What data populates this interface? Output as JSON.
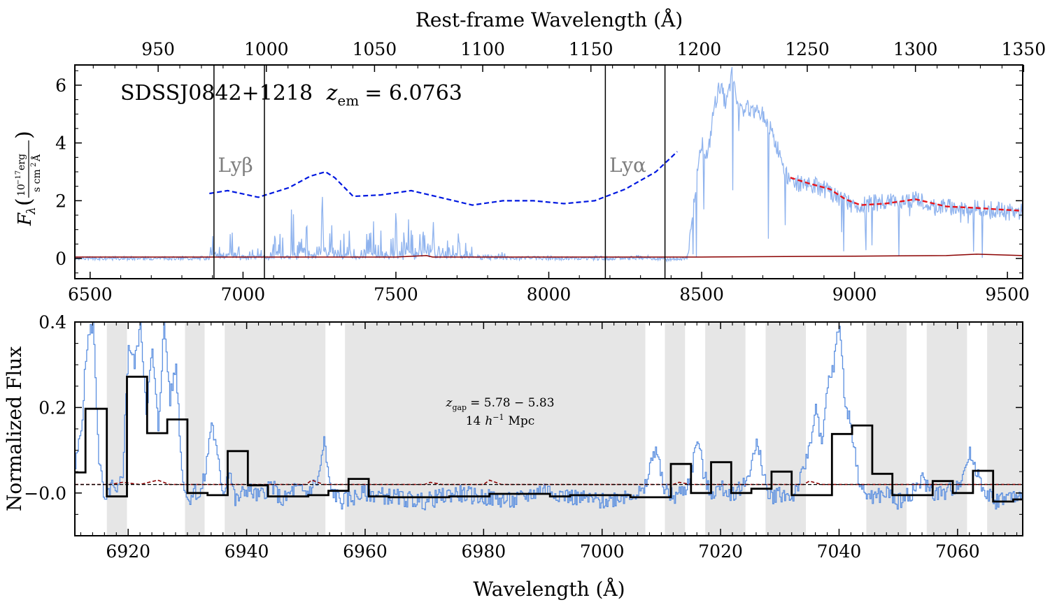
{
  "colors": {
    "spectrum": "#8fb3ee",
    "spectrum_bottom": "#5b8fe0",
    "error": "#8b0000",
    "continuum_extrap": "#0018e0",
    "continuum_fit": "#e8141b",
    "binned": "#000000",
    "gap_shade": "#e6e6e6"
  },
  "chart_data": [
    {
      "type": "line",
      "panel": "top",
      "annotation": "SDSSJ0842+1218 z_em = 6.0763",
      "annotation_object": "SDSSJ0842+1218",
      "annotation_z_label": "z",
      "annotation_z_sub": "em",
      "annotation_z_value": "= 6.0763",
      "xlabel_top": "Rest-frame Wavelength (Å)",
      "ylabel": "F_λ (10^-17 erg / s cm^2 Å)",
      "ylabel_parts": {
        "main": "F",
        "sub": "λ",
        "num": "10",
        "num_exp": "−17",
        "num_unit": "erg",
        "den": "s cm",
        "den_exp": "2",
        "den_unit": "Å"
      },
      "xlim": [
        6450,
        9550
      ],
      "ylim": [
        -0.7,
        6.7
      ],
      "x_ticks": [
        "6500",
        "7000",
        "7500",
        "8000",
        "8500",
        "9000",
        "9500"
      ],
      "x_tick_values": [
        6500,
        7000,
        7500,
        8000,
        8500,
        9000,
        9500
      ],
      "top_ticks": [
        "950",
        "1000",
        "1050",
        "1100",
        "1150",
        "1200",
        "1250",
        "1300",
        "1350"
      ],
      "top_tick_values": [
        950,
        1000,
        1050,
        1100,
        1150,
        1200,
        1250,
        1300,
        1350
      ],
      "redshift": 6.0763,
      "y_ticks": [
        "0",
        "2",
        "4",
        "6"
      ],
      "y_tick_values": [
        0,
        2,
        4,
        6
      ],
      "line_markers": [
        6905,
        7070,
        8185,
        8380
      ],
      "line_labels": [
        {
          "text": "Lyβ",
          "x": 6918,
          "y": 3.0
        },
        {
          "text": "Lyα",
          "x": 8198,
          "y": 3.0
        }
      ],
      "continuum_blue_dashed": {
        "x": [
          6890,
          6950,
          7050,
          7150,
          7220,
          7270,
          7300,
          7360,
          7450,
          7550,
          7650,
          7750,
          7850,
          7950,
          8050,
          8150,
          8250,
          8350,
          8420
        ],
        "y": [
          2.25,
          2.35,
          2.12,
          2.45,
          2.85,
          3.0,
          2.8,
          2.15,
          2.2,
          2.35,
          2.1,
          1.85,
          2.0,
          2.0,
          1.9,
          2.0,
          2.4,
          3.0,
          3.7
        ]
      },
      "continuum_red_dashed": {
        "x": [
          8790,
          8850,
          8920,
          8970,
          9020,
          9100,
          9200,
          9300,
          9400,
          9470,
          9550
        ],
        "y": [
          2.8,
          2.6,
          2.4,
          2.05,
          1.85,
          1.9,
          2.05,
          1.8,
          1.75,
          1.7,
          1.65
        ]
      },
      "spectrum": {
        "x": [
          6450,
          6890,
          6905,
          6930,
          6960,
          7000,
          7050,
          7080,
          7100,
          7120,
          7140,
          7160,
          7180,
          7200,
          7220,
          7240,
          7260,
          7280,
          7300,
          7320,
          7340,
          7360,
          7380,
          7400,
          7420,
          7440,
          7460,
          7480,
          7500,
          7520,
          7540,
          7560,
          7580,
          7600,
          7620,
          7640,
          7660,
          7680,
          7700,
          7720,
          7740,
          7760,
          7800,
          7850,
          7900,
          7950,
          8000,
          8050,
          8100,
          8150,
          8200,
          8250,
          8300,
          8350,
          8400,
          8440,
          8460,
          8480,
          8500,
          8520,
          8540,
          8560,
          8580,
          8600,
          8620,
          8660,
          8700,
          8720,
          8740,
          8760,
          8780,
          8800,
          8850,
          8900,
          8950,
          9000,
          9050,
          9100,
          9150,
          9200,
          9250,
          9300,
          9350,
          9400,
          9450,
          9500,
          9550
        ],
        "y": [
          0.0,
          0.05,
          1.2,
          0.1,
          0.8,
          0.2,
          0.4,
          0.1,
          0.6,
          1.0,
          0.3,
          1.7,
          0.4,
          2.0,
          0.5,
          1.6,
          2.1,
          0.6,
          1.5,
          0.5,
          1.2,
          0.3,
          0.2,
          0.6,
          1.4,
          0.4,
          1.3,
          0.5,
          1.5,
          0.6,
          1.6,
          0.4,
          1.2,
          0.6,
          1.4,
          0.5,
          1.0,
          0.3,
          0.9,
          0.4,
          0.7,
          0.2,
          0.1,
          0.15,
          0.05,
          0.1,
          0.05,
          0.0,
          0.1,
          0.05,
          0.0,
          0.05,
          0.1,
          0.0,
          -0.1,
          0.0,
          0.5,
          2.5,
          4.0,
          3.5,
          5.2,
          6.0,
          5.3,
          6.4,
          5.2,
          5.2,
          5.0,
          4.6,
          4.0,
          3.6,
          2.8,
          2.6,
          2.6,
          2.4,
          2.1,
          1.8,
          1.9,
          2.0,
          1.9,
          2.1,
          1.8,
          1.8,
          1.7,
          1.8,
          1.7,
          1.6,
          1.6
        ]
      },
      "error_spectrum": {
        "x": [
          6450,
          7000,
          7500,
          7600,
          7620,
          8000,
          8500,
          9000,
          9300,
          9400,
          9550
        ],
        "y": [
          0.05,
          0.05,
          0.05,
          0.1,
          0.05,
          0.05,
          0.05,
          0.08,
          0.1,
          0.15,
          0.1
        ]
      }
    },
    {
      "type": "line",
      "panel": "bottom",
      "xlabel": "Wavelength (Å)",
      "ylabel": "Normalized Flux",
      "xlim": [
        6911,
        7071
      ],
      "ylim": [
        -0.1,
        0.4
      ],
      "x_ticks": [
        "6920",
        "6940",
        "6960",
        "6980",
        "7000",
        "7020",
        "7040",
        "7060"
      ],
      "x_tick_values": [
        6920,
        6940,
        6960,
        6980,
        7000,
        7020,
        7040,
        7060
      ],
      "y_ticks": [
        "−0.0",
        "0.2",
        "0.4"
      ],
      "y_tick_values": [
        0.0,
        0.2,
        0.4
      ],
      "annotation_line1": "z_gap = 5.78 − 5.83",
      "annotation_line1_parts": {
        "z": "z",
        "sub": "gap",
        "rest": "= 5.78 − 5.83"
      },
      "annotation_line2": "14 h^-1 Mpc",
      "annotation_line2_parts": {
        "pre": "14",
        "h": "h",
        "exp": "−1",
        "unit": "Mpc"
      },
      "shaded_regions": [
        [
          6916.4,
          6919.8
        ],
        [
          6929.6,
          6932.9
        ],
        [
          6936.3,
          6953.3
        ],
        [
          6956.6,
          7007.3
        ],
        [
          7010.6,
          7014.0
        ],
        [
          7017.4,
          7024.2
        ],
        [
          7027.6,
          7034.4
        ],
        [
          7044.6,
          7051.4
        ],
        [
          7054.8,
          7061.6
        ],
        [
          7065.0,
          7071.0
        ]
      ],
      "binned_steps": {
        "edges": [
          6911,
          6912.8,
          6916.4,
          6919.8,
          6923.2,
          6926.6,
          6930.0,
          6933.4,
          6936.8,
          6940.2,
          6943.6,
          6947.0,
          6950.4,
          6953.8,
          6957.2,
          6960.6,
          6964.0,
          6967.4,
          6970.8,
          6974.2,
          6977.6,
          6981.0,
          6984.4,
          6987.8,
          6991.2,
          6994.6,
          6998.0,
          7001.4,
          7004.8,
          7008.2,
          7011.6,
          7015.0,
          7018.4,
          7021.8,
          7025.2,
          7028.6,
          7032.0,
          7035.4,
          7038.8,
          7042.2,
          7045.6,
          7049.0,
          7052.4,
          7055.8,
          7059.2,
          7062.6,
          7066.0,
          7069.4,
          7071.0
        ],
        "values": [
          0.048,
          0.197,
          -0.008,
          0.272,
          0.14,
          0.172,
          0.0,
          -0.005,
          0.098,
          0.018,
          -0.008,
          -0.008,
          -0.005,
          0.005,
          0.033,
          -0.008,
          -0.01,
          -0.01,
          -0.01,
          -0.008,
          -0.008,
          -0.002,
          -0.002,
          -0.002,
          -0.008,
          -0.005,
          -0.005,
          -0.005,
          -0.01,
          -0.01,
          0.068,
          0.0,
          0.072,
          0.0,
          0.01,
          0.05,
          -0.005,
          -0.005,
          0.138,
          0.158,
          0.045,
          -0.005,
          -0.005,
          0.028,
          0.0,
          0.052,
          -0.02,
          -0.015
        ]
      },
      "spectrum": {
        "x": [
          6911,
          6912,
          6913,
          6914,
          6915,
          6916,
          6917,
          6918,
          6919,
          6920,
          6921,
          6922,
          6923,
          6924,
          6925,
          6926,
          6927,
          6928,
          6929,
          6930,
          6931,
          6932,
          6933,
          6934,
          6935,
          6936,
          6937,
          6938,
          6940,
          6942,
          6944,
          6946,
          6948,
          6950,
          6952,
          6953,
          6954,
          6956,
          6958,
          6960,
          6965,
          6970,
          6975,
          6980,
          6985,
          6990,
          6995,
          7000,
          7005,
          7007,
          7008,
          7009,
          7010,
          7011,
          7012,
          7014,
          7015,
          7016,
          7017,
          7018,
          7020,
          7022,
          7024,
          7026,
          7027,
          7028,
          7030,
          7032,
          7034,
          7035,
          7036,
          7037,
          7038,
          7039,
          7040,
          7041,
          7042,
          7043,
          7044,
          7046,
          7048,
          7050,
          7052,
          7054,
          7056,
          7058,
          7060,
          7062,
          7063,
          7064,
          7066,
          7068,
          7070,
          7071
        ],
        "y": [
          0.06,
          0.15,
          0.35,
          0.4,
          0.08,
          -0.03,
          0.02,
          -0.01,
          0.05,
          0.35,
          0.3,
          0.4,
          0.2,
          0.33,
          0.15,
          0.4,
          0.22,
          0.3,
          0.05,
          -0.02,
          0.01,
          -0.01,
          0.05,
          0.17,
          0.08,
          0.0,
          0.06,
          -0.02,
          0.01,
          -0.01,
          0.02,
          -0.02,
          0.01,
          0.0,
          0.03,
          0.12,
          0.01,
          -0.02,
          -0.01,
          0.0,
          -0.01,
          -0.02,
          0.0,
          -0.01,
          -0.02,
          0.01,
          -0.01,
          -0.02,
          0.0,
          0.0,
          0.06,
          0.11,
          0.03,
          0.0,
          -0.01,
          0.01,
          0.05,
          0.13,
          0.05,
          0.0,
          0.01,
          0.0,
          0.02,
          0.11,
          0.06,
          -0.01,
          0.0,
          -0.01,
          0.05,
          0.12,
          0.2,
          0.1,
          0.25,
          0.3,
          0.4,
          0.2,
          0.16,
          0.05,
          0.0,
          -0.01,
          0.0,
          -0.02,
          0.0,
          0.03,
          0.0,
          0.0,
          0.02,
          0.09,
          0.06,
          0.02,
          -0.02,
          -0.01,
          -0.01,
          -0.02
        ]
      },
      "error_spectrum": {
        "x": [
          6911,
          6917,
          6919,
          6922,
          6925,
          6927,
          6930,
          6950,
          6951,
          6953,
          6970,
          6971,
          6973,
          6980,
          6981,
          6983,
          7000,
          7012,
          7013,
          7015,
          7034,
          7035,
          7037,
          7071
        ],
        "y": [
          0.02,
          0.02,
          0.025,
          0.02,
          0.03,
          0.02,
          0.02,
          0.02,
          0.03,
          0.02,
          0.02,
          0.025,
          0.02,
          0.02,
          0.03,
          0.02,
          0.02,
          0.02,
          0.025,
          0.02,
          0.02,
          0.028,
          0.02,
          0.02
        ]
      },
      "continuum_level": 0.02
    }
  ]
}
